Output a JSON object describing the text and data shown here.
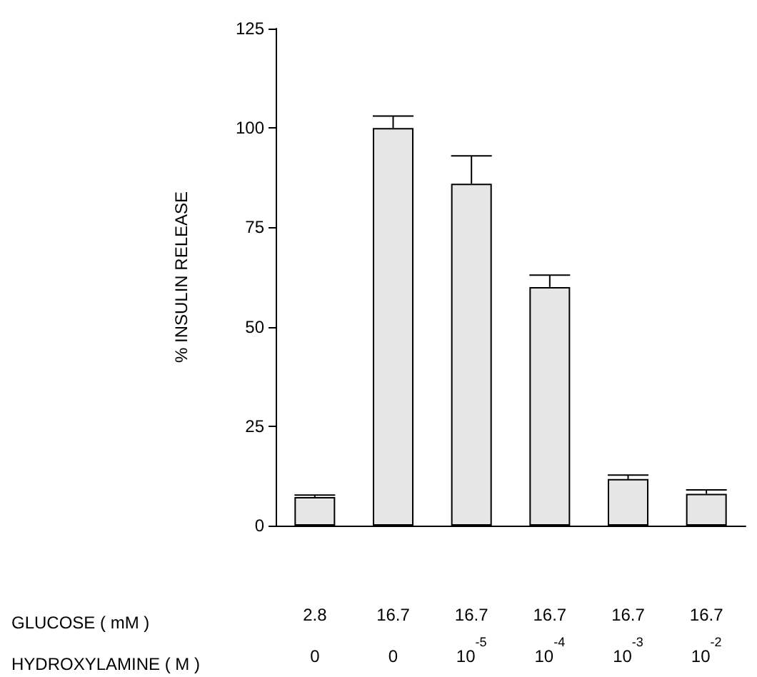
{
  "chart_data": {
    "type": "bar",
    "ylabel": "% INSULIN RELEASE",
    "categories": [
      "2.8\n0",
      "16.7\n0",
      "16.7\n10$^{-5}$",
      "16.7\n10$^{-4}$",
      "16.7\n10$^{-3}$",
      "16.7\n10$^{-2}$"
    ],
    "values": [
      7.2,
      100,
      86,
      60,
      11.7,
      8
    ],
    "errors": [
      0.5,
      3,
      7,
      3,
      1,
      1
    ],
    "color": "#e6e6e6",
    "ylim": [
      0,
      125
    ],
    "yticks": [
      0,
      25,
      50,
      75,
      100,
      125
    ],
    "grid": false,
    "annotations": [
      "GLUCOSE ( mM )",
      "HYDROXYLAMINE ( M )"
    ]
  }
}
